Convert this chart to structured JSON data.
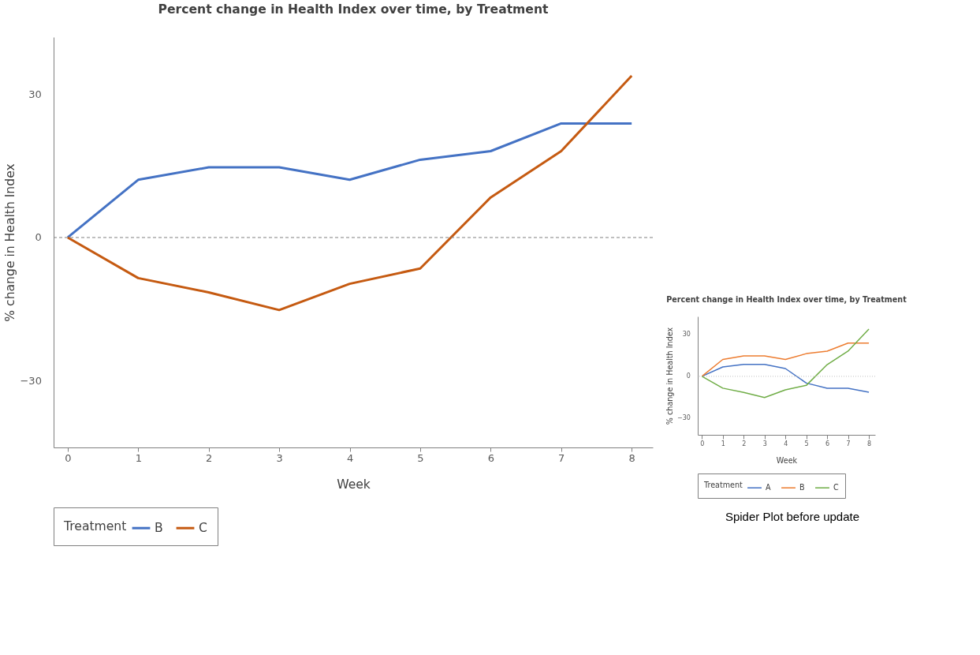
{
  "chart_data": [
    {
      "type": "line",
      "title": "Percent change in Health Index over time, by Treatment",
      "xlabel": "Week",
      "ylabel": "% change in Health Index",
      "legend_title": "Treatment",
      "legend": "bottom",
      "grid": false,
      "line_style": "solid",
      "marker": "none",
      "x": [
        0,
        1,
        2,
        3,
        4,
        5,
        6,
        7,
        8
      ],
      "xlim": [
        -0.2,
        8.3
      ],
      "xticks": [
        0,
        1,
        2,
        3,
        4,
        5,
        6,
        7,
        8
      ],
      "ylim": [
        -44,
        42
      ],
      "yticks": [
        -30,
        0,
        30
      ],
      "ref_lines": [
        {
          "axis": "y",
          "value": 0,
          "color": "#808080",
          "line_style": "dashed"
        }
      ],
      "series": [
        {
          "name": "B",
          "color": "#4472c4",
          "values": [
            0,
            12.1,
            14.7,
            14.7,
            12.1,
            16.3,
            18.1,
            23.9,
            23.9
          ]
        },
        {
          "name": "C",
          "color": "#c55a11",
          "values": [
            0,
            -8.5,
            -11.5,
            -15.2,
            -9.7,
            -6.5,
            8.4,
            18.1,
            33.9
          ]
        }
      ]
    },
    {
      "type": "line",
      "title": "Percent change in Health Index over time, by Treatment",
      "xlabel": "Week",
      "ylabel": "% change in Health Index",
      "legend_title": "Treatment",
      "legend": "bottom",
      "grid": false,
      "line_style": "solid",
      "marker": "none",
      "x": [
        0,
        1,
        2,
        3,
        4,
        5,
        6,
        7,
        8
      ],
      "xlim": [
        -0.2,
        8.3
      ],
      "xticks": [
        0,
        1,
        2,
        3,
        4,
        5,
        6,
        7,
        8
      ],
      "ylim": [
        -42,
        43
      ],
      "yticks": [
        -30,
        0,
        30
      ],
      "ref_lines": [
        {
          "axis": "y",
          "value": 0,
          "color": "#bfbfbf",
          "line_style": "dotted"
        }
      ],
      "annotations": [
        "Spider Plot before update"
      ],
      "series": [
        {
          "name": "A",
          "color": "#4472c4",
          "values": [
            0,
            6.7,
            8.6,
            8.6,
            5.6,
            -4.8,
            -8.6,
            -8.6,
            -11.4
          ]
        },
        {
          "name": "B",
          "color": "#ed7d31",
          "values": [
            0,
            12.1,
            14.7,
            14.7,
            12.1,
            16.3,
            18.1,
            23.9,
            23.9
          ]
        },
        {
          "name": "C",
          "color": "#70ad47",
          "values": [
            0,
            -8.5,
            -11.5,
            -15.2,
            -9.7,
            -6.5,
            8.4,
            18.1,
            33.9
          ]
        }
      ]
    }
  ]
}
